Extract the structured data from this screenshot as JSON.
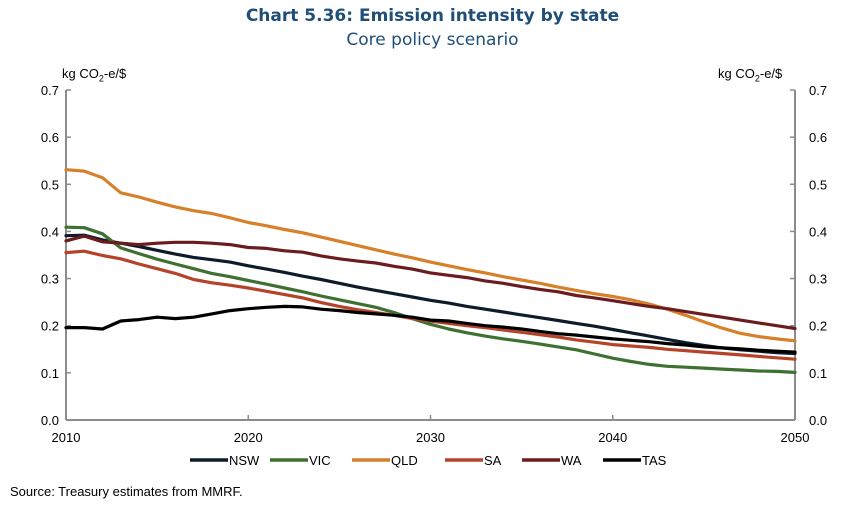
{
  "chart_data": {
    "type": "line",
    "title": "Chart 5.36: Emission intensity by state",
    "subtitle": "Core policy scenario",
    "ylabel_left": "kg CO2-e/$",
    "ylabel_right": "kg CO2-e/$",
    "ylim": [
      0,
      0.7
    ],
    "yticks": [
      "0.0",
      "0.1",
      "0.2",
      "0.3",
      "0.4",
      "0.5",
      "0.6",
      "0.7"
    ],
    "xlim": [
      2010,
      2050
    ],
    "xticks": [
      "2010",
      "2020",
      "2030",
      "2040",
      "2050"
    ],
    "legend_position": "bottom",
    "x": [
      2010,
      2011,
      2012,
      2013,
      2014,
      2015,
      2016,
      2017,
      2018,
      2019,
      2020,
      2021,
      2022,
      2023,
      2024,
      2025,
      2026,
      2027,
      2028,
      2029,
      2030,
      2031,
      2032,
      2033,
      2034,
      2035,
      2036,
      2037,
      2038,
      2039,
      2040,
      2041,
      2042,
      2043,
      2044,
      2045,
      2046,
      2047,
      2048,
      2049,
      2050
    ],
    "series": [
      {
        "name": "NSW",
        "color": "#0d1b2a",
        "values": [
          0.391,
          0.392,
          0.382,
          0.375,
          0.368,
          0.36,
          0.352,
          0.345,
          0.34,
          0.335,
          0.327,
          0.32,
          0.313,
          0.305,
          0.298,
          0.29,
          0.282,
          0.275,
          0.268,
          0.261,
          0.254,
          0.248,
          0.241,
          0.235,
          0.229,
          0.223,
          0.217,
          0.211,
          0.205,
          0.199,
          0.192,
          0.185,
          0.178,
          0.171,
          0.164,
          0.158,
          0.153,
          0.149,
          0.146,
          0.143,
          0.141
        ]
      },
      {
        "name": "VIC",
        "color": "#3e7131",
        "values": [
          0.409,
          0.408,
          0.395,
          0.365,
          0.353,
          0.341,
          0.331,
          0.321,
          0.311,
          0.304,
          0.296,
          0.288,
          0.28,
          0.272,
          0.263,
          0.255,
          0.247,
          0.239,
          0.228,
          0.215,
          0.203,
          0.193,
          0.185,
          0.178,
          0.172,
          0.167,
          0.161,
          0.155,
          0.149,
          0.14,
          0.131,
          0.124,
          0.118,
          0.114,
          0.112,
          0.11,
          0.108,
          0.106,
          0.104,
          0.103,
          0.101
        ]
      },
      {
        "name": "QLD",
        "color": "#d6802a",
        "values": [
          0.531,
          0.528,
          0.514,
          0.482,
          0.473,
          0.462,
          0.452,
          0.444,
          0.438,
          0.429,
          0.419,
          0.412,
          0.404,
          0.397,
          0.388,
          0.379,
          0.37,
          0.361,
          0.352,
          0.344,
          0.335,
          0.327,
          0.319,
          0.312,
          0.304,
          0.297,
          0.29,
          0.282,
          0.275,
          0.268,
          0.262,
          0.255,
          0.246,
          0.235,
          0.222,
          0.208,
          0.195,
          0.184,
          0.177,
          0.172,
          0.168
        ]
      },
      {
        "name": "SA",
        "color": "#b5432a",
        "values": [
          0.355,
          0.358,
          0.349,
          0.342,
          0.331,
          0.321,
          0.311,
          0.298,
          0.291,
          0.286,
          0.28,
          0.273,
          0.266,
          0.259,
          0.249,
          0.241,
          0.234,
          0.228,
          0.222,
          0.215,
          0.21,
          0.205,
          0.2,
          0.196,
          0.191,
          0.186,
          0.181,
          0.176,
          0.17,
          0.165,
          0.16,
          0.157,
          0.154,
          0.15,
          0.147,
          0.144,
          0.141,
          0.138,
          0.135,
          0.132,
          0.129
        ]
      },
      {
        "name": "WA",
        "color": "#6b1c1e",
        "values": [
          0.38,
          0.39,
          0.378,
          0.375,
          0.372,
          0.375,
          0.377,
          0.377,
          0.375,
          0.372,
          0.366,
          0.364,
          0.359,
          0.356,
          0.348,
          0.342,
          0.337,
          0.333,
          0.326,
          0.32,
          0.312,
          0.307,
          0.302,
          0.295,
          0.29,
          0.283,
          0.277,
          0.272,
          0.264,
          0.259,
          0.253,
          0.247,
          0.241,
          0.236,
          0.23,
          0.224,
          0.218,
          0.212,
          0.206,
          0.2,
          0.194
        ]
      },
      {
        "name": "TAS",
        "color": "#000000",
        "values": [
          0.196,
          0.196,
          0.193,
          0.21,
          0.213,
          0.218,
          0.215,
          0.218,
          0.225,
          0.232,
          0.236,
          0.239,
          0.241,
          0.24,
          0.235,
          0.232,
          0.228,
          0.225,
          0.222,
          0.218,
          0.212,
          0.21,
          0.205,
          0.2,
          0.197,
          0.193,
          0.188,
          0.183,
          0.18,
          0.176,
          0.172,
          0.169,
          0.166,
          0.162,
          0.159,
          0.155,
          0.153,
          0.151,
          0.148,
          0.146,
          0.144
        ]
      }
    ]
  },
  "source": "Source: Treasury estimates from MMRF.",
  "unit_prefix": "kg CO",
  "unit_sub": "2",
  "unit_suffix": "-e/$"
}
